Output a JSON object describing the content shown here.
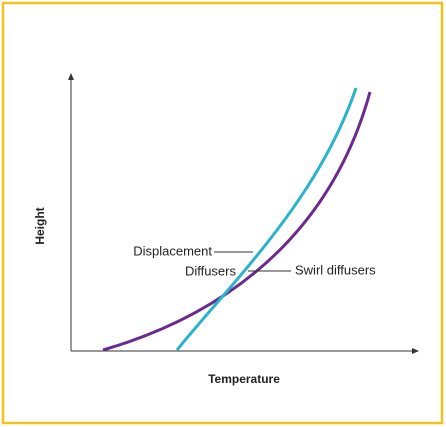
{
  "axes": {
    "y_label": "Height",
    "x_label": "Temperature"
  },
  "curves": [
    {
      "label_lines": [
        "Displacement",
        "Diffusers"
      ]
    },
    {
      "label_lines": [
        "Swirl diffusers"
      ]
    }
  ]
}
